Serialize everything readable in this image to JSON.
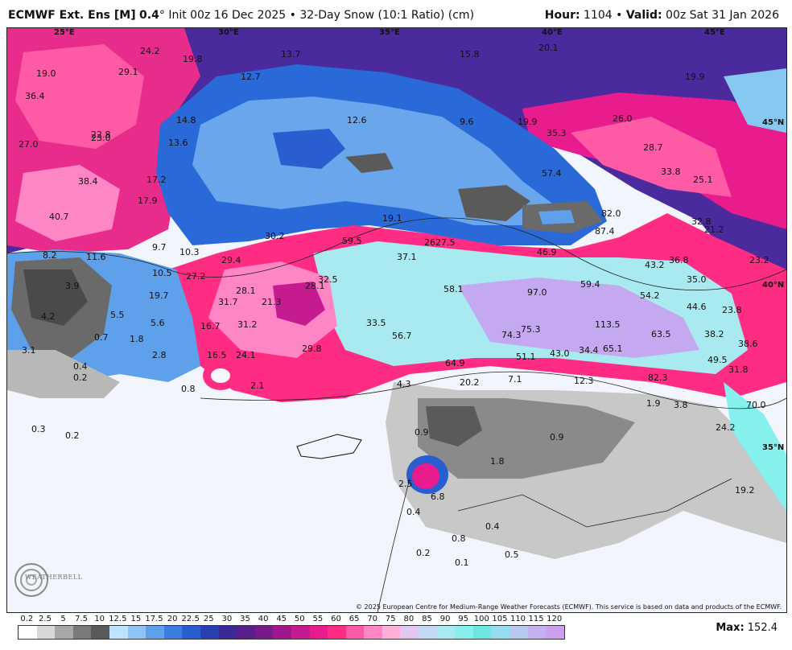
{
  "header": {
    "model": "ECMWF Ext. Ens [M]",
    "resolution": "0.4",
    "degree": "°",
    "init": "Init 00z 16 Dec 2025",
    "bullet": "•",
    "product": "32-Day Snow (10:1 Ratio) (cm)",
    "hour_label": "Hour:",
    "hour_value": "1104",
    "valid_label": "Valid:",
    "valid_value": "00z Sat 31 Jan 2026"
  },
  "copyright": "© 2025 European Centre for Medium-Range Weather Forecasts (ECMWF). This service is based on data and products of the ECMWF.",
  "logo": {
    "text": "WEATHERBELL",
    "icon": "weatherbell-swirl-icon"
  },
  "max": {
    "label": "Max:",
    "value": "152.4"
  },
  "legend": {
    "ticks": [
      "0.2",
      "2.5",
      "5",
      "7.5",
      "10",
      "12.5",
      "15",
      "17.5",
      "20",
      "22.5",
      "25",
      "30",
      "35",
      "40",
      "45",
      "50",
      "55",
      "60",
      "65",
      "70",
      "75",
      "80",
      "85",
      "90",
      "95",
      "100",
      "105",
      "110",
      "115",
      "120"
    ],
    "colors": [
      "#ffffff",
      "#d8d8d8",
      "#a8a8a8",
      "#7a7a7a",
      "#5a5a5a",
      "#bfe3ff",
      "#8fc2f5",
      "#5ea0ea",
      "#3a7fe0",
      "#2a5ed0",
      "#2a3fb0",
      "#3a2a96",
      "#5a1e8c",
      "#7a1a8a",
      "#a0168c",
      "#c61a90",
      "#e81c8c",
      "#ff2c84",
      "#ff5aa6",
      "#ff86c4",
      "#ffb0d8",
      "#e0c8f0",
      "#c4d8f4",
      "#a8eaf0",
      "#86f0ec",
      "#6ee6e0",
      "#96dcf0",
      "#b6c8f2",
      "#c4b2f0",
      "#cca0ee"
    ]
  },
  "coords": {
    "lon": [
      "25°E",
      "30°E",
      "35°E",
      "40°E",
      "45°E"
    ],
    "lat": [
      "45°N",
      "40°N",
      "35°N"
    ]
  },
  "values": [
    "24.2",
    "19.8",
    "13.7",
    "15.8",
    "20.1",
    "19.0",
    "29.1",
    "36.4",
    "12.7",
    "19.9",
    "14.8",
    "12.6",
    "9.6",
    "19.9",
    "26.0",
    "22.8",
    "23.0",
    "27.0",
    "13.6",
    "35.3",
    "28.7",
    "38.4",
    "17.2",
    "57.4",
    "33.8",
    "25.1",
    "17.9",
    "40.7",
    "19.1",
    "82.0",
    "32.8",
    "21.2",
    "30.2",
    "59.5",
    "26",
    "27.5",
    "87.4",
    "9.7",
    "10.3",
    "37.1",
    "46.9",
    "36.8",
    "23.2",
    "8.2",
    "11.6",
    "29.4",
    "43.2",
    "10.5",
    "27.2",
    "32.5",
    "35.0",
    "3.9",
    "28.1",
    "28.1",
    "58.1",
    "59.4",
    "19.7",
    "31.7",
    "21.3",
    "97.0",
    "54.2",
    "44.6",
    "23.8",
    "4.2",
    "5.5",
    "5.6",
    "31.2",
    "33.5",
    "16.7",
    "113.5",
    "75.3",
    "63.5",
    "38.2",
    "38.6",
    "0.7",
    "1.8",
    "74.3",
    "56.7",
    "29.8",
    "3.1",
    "2.8",
    "16.5",
    "24.1",
    "51.1",
    "43.0",
    "34.4",
    "65.1",
    "49.5",
    "64.9",
    "31.8",
    "0.4",
    "0.2",
    "12.3",
    "82.3",
    "2.1",
    "7.1",
    "20.2",
    "0.8",
    "4.3",
    "1.9",
    "70.0",
    "3.8",
    "0.3",
    "0.9",
    "0.2",
    "24.2",
    "0.9",
    "1.8",
    "2.5",
    "19.2",
    "6.8",
    "0.4",
    "0.4",
    "0.8",
    "0.2",
    "0.5",
    "0.1"
  ]
}
